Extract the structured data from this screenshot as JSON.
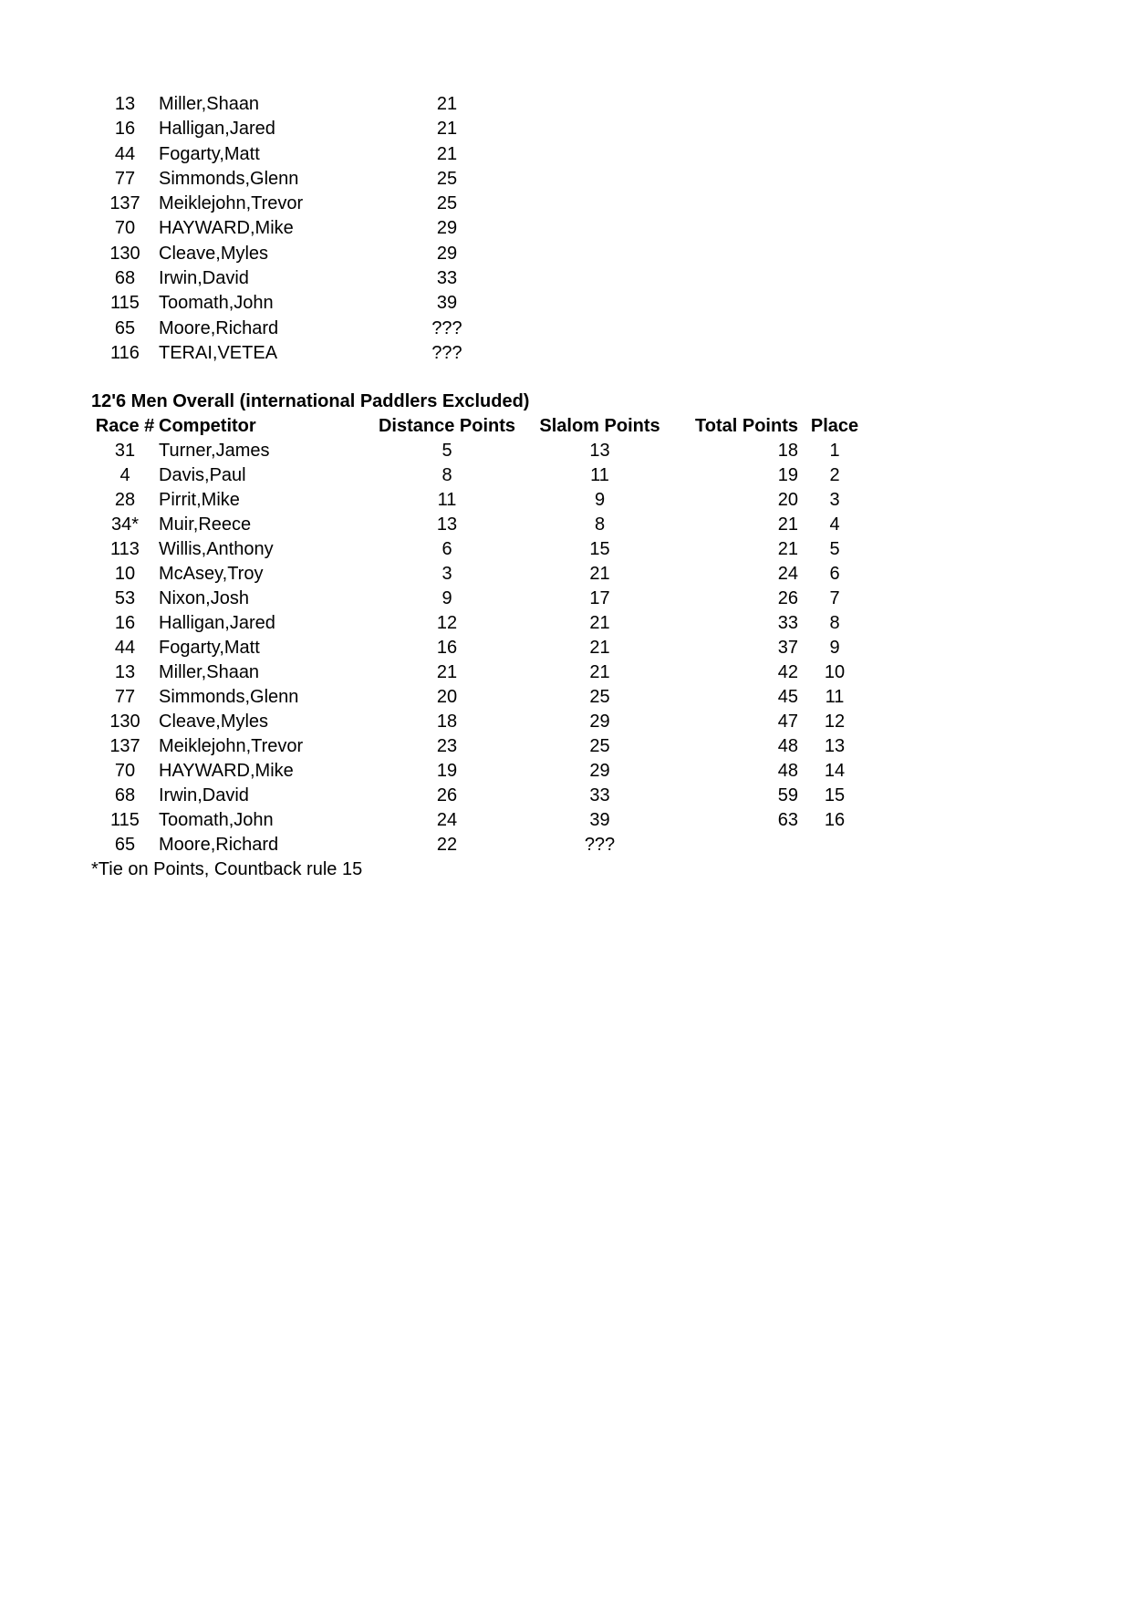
{
  "page": {
    "background_color": "#ffffff",
    "text_color": "#000000"
  },
  "partial_table": {
    "columns": [
      "race-number",
      "competitor-name",
      "points"
    ],
    "rows": [
      [
        "13",
        "Miller,Shaan",
        "21"
      ],
      [
        "16",
        "Halligan,Jared",
        "21"
      ],
      [
        "44",
        "Fogarty,Matt",
        "21"
      ],
      [
        "77",
        "Simmonds,Glenn",
        "25"
      ],
      [
        "137",
        "Meiklejohn,Trevor",
        "25"
      ],
      [
        "70",
        "HAYWARD,Mike",
        "29"
      ],
      [
        "130",
        "Cleave,Myles",
        "29"
      ],
      [
        "68",
        "Irwin,David",
        "33"
      ],
      [
        "115",
        "Toomath,John",
        "39"
      ],
      [
        "65",
        "Moore,Richard",
        "???"
      ],
      [
        "116",
        "TERAI,VETEA",
        "???"
      ]
    ]
  },
  "overall_table": {
    "title": "12'6 Men Overall (international Paddlers Excluded)",
    "columns": [
      "race-number",
      "competitor-name",
      "distance-points",
      "slalom-points",
      "total-points",
      "place"
    ],
    "headers": [
      "Race #",
      "Competitor",
      "Distance Points",
      "Slalom Points",
      "Total Points",
      "Place"
    ],
    "rows": [
      [
        "31",
        "Turner,James",
        "5",
        "13",
        "18",
        "1"
      ],
      [
        "4",
        "Davis,Paul",
        "8",
        "11",
        "19",
        "2"
      ],
      [
        "28",
        "Pirrit,Mike",
        "11",
        "9",
        "20",
        "3"
      ],
      [
        "34*",
        "Muir,Reece",
        "13",
        "8",
        "21",
        "4"
      ],
      [
        "113",
        "Willis,Anthony",
        "6",
        "15",
        "21",
        "5"
      ],
      [
        "10",
        "McAsey,Troy",
        "3",
        "21",
        "24",
        "6"
      ],
      [
        "53",
        "Nixon,Josh",
        "9",
        "17",
        "26",
        "7"
      ],
      [
        "16",
        "Halligan,Jared",
        "12",
        "21",
        "33",
        "8"
      ],
      [
        "44",
        "Fogarty,Matt",
        "16",
        "21",
        "37",
        "9"
      ],
      [
        "13",
        "Miller,Shaan",
        "21",
        "21",
        "42",
        "10"
      ],
      [
        "77",
        "Simmonds,Glenn",
        "20",
        "25",
        "45",
        "11"
      ],
      [
        "130",
        "Cleave,Myles",
        "18",
        "29",
        "47",
        "12"
      ],
      [
        "137",
        "Meiklejohn,Trevor",
        "23",
        "25",
        "48",
        "13"
      ],
      [
        "70",
        "HAYWARD,Mike",
        "19",
        "29",
        "48",
        "14"
      ],
      [
        "68",
        "Irwin,David",
        "26",
        "33",
        "59",
        "15"
      ],
      [
        "115",
        "Toomath,John",
        "24",
        "39",
        "63",
        "16"
      ],
      [
        "65",
        "Moore,Richard",
        "22",
        "???",
        "",
        ""
      ]
    ],
    "footnote": "*Tie on Points, Countback rule 15"
  }
}
